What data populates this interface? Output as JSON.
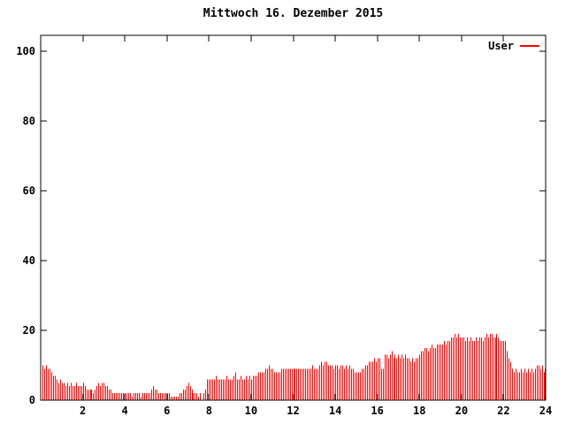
{
  "title": "Mittwoch 16. Dezember 2015",
  "legend": {
    "label": "User"
  },
  "colors": {
    "series": "#ff0000",
    "axis": "#000000",
    "background": "#ffffff",
    "text": "#000000"
  },
  "chart_data": {
    "type": "bar",
    "style": "impulses",
    "title": "Mittwoch 16. Dezember 2015",
    "xlabel": "",
    "ylabel": "",
    "x_unit": "hour-of-day",
    "sample_interval_minutes": 5,
    "xlim": [
      0,
      24
    ],
    "ylim": [
      0,
      104.5
    ],
    "x_ticks": [
      2,
      4,
      6,
      8,
      10,
      12,
      14,
      16,
      18,
      20,
      22,
      24
    ],
    "y_ticks": [
      0,
      20,
      40,
      60,
      80,
      100
    ],
    "grid": false,
    "legend_position": "top-right-inside",
    "series": [
      {
        "name": "User",
        "color": "#ff0000",
        "values": [
          10,
          9,
          10,
          9,
          9,
          8,
          7,
          7,
          6,
          5,
          6,
          5,
          5,
          4,
          5,
          4,
          5,
          4,
          4,
          5,
          4,
          4,
          4,
          5,
          4,
          3,
          3,
          3,
          3,
          2,
          3,
          4,
          5,
          4,
          5,
          5,
          4,
          4,
          3,
          3,
          2,
          2,
          2,
          2,
          2,
          2,
          2,
          2,
          2,
          2,
          2,
          1,
          2,
          2,
          2,
          2,
          1,
          2,
          2,
          2,
          2,
          2,
          3,
          4,
          3,
          3,
          2,
          2,
          2,
          2,
          2,
          2,
          2,
          1,
          1,
          1,
          1,
          1,
          2,
          2,
          3,
          3,
          4,
          5,
          4,
          3,
          2,
          2,
          2,
          1,
          2,
          0,
          2,
          3,
          6,
          6,
          6,
          6,
          6,
          7,
          6,
          6,
          6,
          6,
          6,
          7,
          6,
          6,
          6,
          7,
          8,
          6,
          6,
          7,
          6,
          6,
          7,
          6,
          7,
          6,
          7,
          7,
          7,
          8,
          8,
          8,
          8,
          9,
          9,
          10,
          9,
          9,
          8,
          8,
          8,
          8,
          9,
          9,
          9,
          9,
          9,
          9,
          9,
          9,
          9,
          9,
          9,
          9,
          9,
          9,
          9,
          9,
          9,
          9,
          10,
          9,
          9,
          9,
          10,
          11,
          10,
          11,
          11,
          10,
          10,
          10,
          9,
          10,
          10,
          9,
          10,
          10,
          9,
          10,
          9,
          10,
          9,
          9,
          8,
          8,
          8,
          8,
          9,
          9,
          10,
          10,
          11,
          11,
          11,
          12,
          11,
          12,
          12,
          9,
          9,
          13,
          13,
          12,
          13,
          14,
          12,
          13,
          12,
          13,
          12,
          13,
          12,
          13,
          12,
          12,
          11,
          12,
          11,
          12,
          12,
          13,
          14,
          14,
          15,
          15,
          14,
          15,
          16,
          15,
          15,
          16,
          16,
          16,
          16,
          17,
          16,
          17,
          17,
          18,
          18,
          19,
          18,
          19,
          18,
          18,
          18,
          17,
          18,
          17,
          18,
          17,
          17,
          18,
          17,
          18,
          18,
          17,
          18,
          19,
          18,
          19,
          19,
          18,
          18,
          19,
          18,
          17,
          17,
          17,
          17,
          14,
          12,
          11,
          9,
          8,
          9,
          8,
          8,
          9,
          8,
          9,
          8,
          9,
          8,
          9,
          8,
          9,
          10,
          10,
          9,
          10,
          8,
          9
        ]
      }
    ]
  }
}
